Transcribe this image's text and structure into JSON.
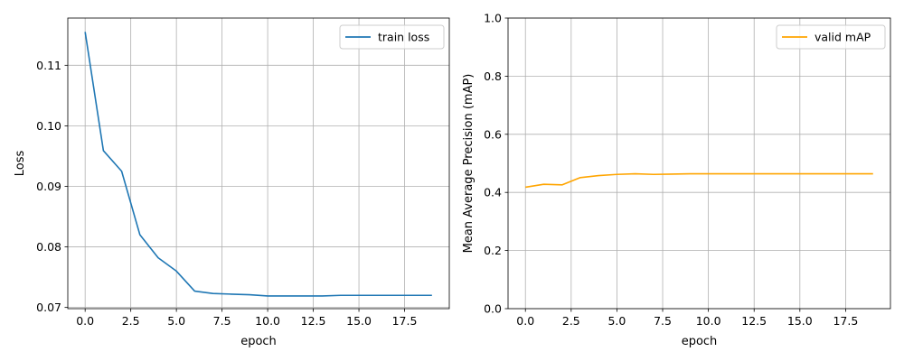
{
  "chart_data": [
    {
      "type": "line",
      "xlabel": "epoch",
      "ylabel": "Loss",
      "xlim": [
        -0.95,
        19.95
      ],
      "ylim": [
        0.0698,
        0.1178
      ],
      "xticks": [
        0.0,
        2.5,
        5.0,
        7.5,
        10.0,
        12.5,
        15.0,
        17.5
      ],
      "xtick_labels": [
        "0.0",
        "2.5",
        "5.0",
        "7.5",
        "10.0",
        "12.5",
        "15.0",
        "17.5"
      ],
      "yticks": [
        0.07,
        0.08,
        0.09,
        0.1,
        0.11
      ],
      "ytick_labels": [
        "0.07",
        "0.08",
        "0.09",
        "0.10",
        "0.11"
      ],
      "grid": true,
      "legend_position": "top-right",
      "series": [
        {
          "name": "train loss",
          "color": "#1f77b4",
          "x": [
            0,
            1,
            2,
            3,
            4,
            5,
            6,
            7,
            8,
            9,
            10,
            11,
            12,
            13,
            14,
            15,
            16,
            17,
            18,
            19
          ],
          "y": [
            0.1155,
            0.0959,
            0.0925,
            0.082,
            0.0782,
            0.076,
            0.0727,
            0.0723,
            0.0722,
            0.0721,
            0.0719,
            0.0719,
            0.0719,
            0.0719,
            0.072,
            0.072,
            0.072,
            0.072,
            0.072,
            0.072
          ]
        }
      ]
    },
    {
      "type": "line",
      "xlabel": "epoch",
      "ylabel": "Mean Average Precision (mAP)",
      "xlim": [
        -0.95,
        19.95
      ],
      "ylim": [
        0.0,
        1.0
      ],
      "xticks": [
        0.0,
        2.5,
        5.0,
        7.5,
        10.0,
        12.5,
        15.0,
        17.5
      ],
      "xtick_labels": [
        "0.0",
        "2.5",
        "5.0",
        "7.5",
        "10.0",
        "12.5",
        "15.0",
        "17.5"
      ],
      "yticks": [
        0.0,
        0.2,
        0.4,
        0.6,
        0.8,
        1.0
      ],
      "ytick_labels": [
        "0.0",
        "0.2",
        "0.4",
        "0.6",
        "0.8",
        "1.0"
      ],
      "grid": true,
      "legend_position": "top-right",
      "series": [
        {
          "name": "valid mAP",
          "color": "#ffa500",
          "x": [
            0,
            1,
            2,
            3,
            4,
            5,
            6,
            7,
            8,
            9,
            10,
            11,
            12,
            13,
            14,
            15,
            16,
            17,
            18,
            19
          ],
          "y": [
            0.418,
            0.428,
            0.426,
            0.451,
            0.458,
            0.462,
            0.464,
            0.462,
            0.463,
            0.464,
            0.464,
            0.464,
            0.464,
            0.464,
            0.464,
            0.464,
            0.464,
            0.464,
            0.464,
            0.464
          ]
        }
      ]
    }
  ]
}
